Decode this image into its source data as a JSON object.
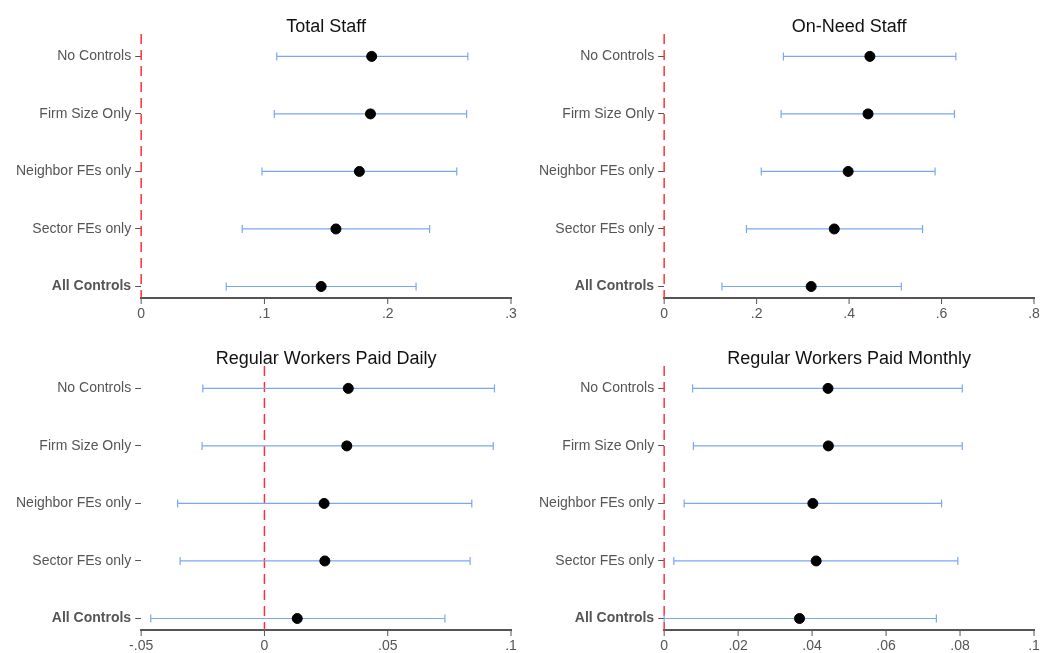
{
  "chart_data": [
    {
      "type": "scatter",
      "title": "Total Staff",
      "orientation": "horizontal",
      "marker": "circle",
      "color": "#000000",
      "categories": [
        "No Controls",
        "Firm Size Only",
        "Neighbor FEs only",
        "Sector FEs only",
        "All Controls"
      ],
      "values": [
        0.187,
        0.186,
        0.177,
        0.158,
        0.146
      ],
      "errors": [
        [
          0.11,
          0.265
        ],
        [
          0.108,
          0.264
        ],
        [
          0.098,
          0.256
        ],
        [
          0.082,
          0.234
        ],
        [
          0.069,
          0.223
        ]
      ],
      "xlim": [
        0,
        0.3
      ],
      "xticks": [
        {
          "value": 0,
          "label": "0"
        },
        {
          "value": 0.1,
          "label": ".1"
        },
        {
          "value": 0.2,
          "label": ".2"
        },
        {
          "value": 0.3,
          "label": ".3"
        }
      ],
      "ref_lines": [
        {
          "axis": "x",
          "value": 0,
          "color": "#ff3333",
          "line_style": "dashed"
        }
      ]
    },
    {
      "type": "scatter",
      "title": "On-Need Staff",
      "orientation": "horizontal",
      "marker": "circle",
      "color": "#000000",
      "categories": [
        "No Controls",
        "Firm Size Only",
        "Neighbor FEs only",
        "Sector FEs only",
        "All Controls"
      ],
      "values": [
        0.445,
        0.441,
        0.398,
        0.368,
        0.318
      ],
      "errors": [
        [
          0.258,
          0.631
        ],
        [
          0.253,
          0.628
        ],
        [
          0.21,
          0.586
        ],
        [
          0.178,
          0.559
        ],
        [
          0.125,
          0.513
        ]
      ],
      "xlim": [
        0,
        0.8
      ],
      "xticks": [
        {
          "value": 0,
          "label": "0"
        },
        {
          "value": 0.2,
          "label": ".2"
        },
        {
          "value": 0.4,
          "label": ".4"
        },
        {
          "value": 0.6,
          "label": ".6"
        },
        {
          "value": 0.8,
          "label": ".8"
        }
      ],
      "ref_lines": [
        {
          "axis": "x",
          "value": 0,
          "color": "#ff3333",
          "line_style": "dashed"
        }
      ]
    },
    {
      "type": "scatter",
      "title": "Regular Workers Paid Daily",
      "orientation": "horizontal",
      "marker": "circle",
      "color": "#000000",
      "categories": [
        "No Controls",
        "Firm Size Only",
        "Neighbor FEs only",
        "Sector FEs only",
        "All Controls"
      ],
      "values": [
        0.034,
        0.0334,
        0.0242,
        0.0245,
        0.0133
      ],
      "errors": [
        [
          -0.025,
          0.0933
        ],
        [
          -0.0253,
          0.0928
        ],
        [
          -0.0352,
          0.0841
        ],
        [
          -0.0342,
          0.0834
        ],
        [
          -0.0461,
          0.0732
        ]
      ],
      "xlim": [
        -0.05,
        0.1
      ],
      "xticks": [
        {
          "value": -0.05,
          "label": "-.05"
        },
        {
          "value": 0,
          "label": "0"
        },
        {
          "value": 0.05,
          "label": ".05"
        },
        {
          "value": 0.1,
          "label": ".1"
        }
      ],
      "ref_lines": [
        {
          "axis": "x",
          "value": 0,
          "color": "#ff3333",
          "line_style": "dashed"
        }
      ]
    },
    {
      "type": "scatter",
      "title": "Regular Workers Paid Monthly",
      "orientation": "horizontal",
      "marker": "circle",
      "color": "#000000",
      "categories": [
        "No Controls",
        "Firm Size Only",
        "Neighbor FEs only",
        "Sector FEs only",
        "All Controls"
      ],
      "values": [
        0.0443,
        0.0444,
        0.0402,
        0.0411,
        0.0366
      ],
      "errors": [
        [
          0.0077,
          0.0806
        ],
        [
          0.0079,
          0.0806
        ],
        [
          0.0054,
          0.075
        ],
        [
          0.0026,
          0.0794
        ],
        [
          0.0,
          0.0736
        ]
      ],
      "xlim": [
        0,
        0.1
      ],
      "xticks": [
        {
          "value": 0,
          "label": "0"
        },
        {
          "value": 0.02,
          "label": ".02"
        },
        {
          "value": 0.04,
          "label": ".04"
        },
        {
          "value": 0.06,
          "label": ".06"
        },
        {
          "value": 0.08,
          "label": ".08"
        },
        {
          "value": 0.1,
          "label": ".1"
        }
      ],
      "ref_lines": [
        {
          "axis": "x",
          "value": 0,
          "color": "#ff3333",
          "line_style": "dashed"
        }
      ]
    }
  ]
}
